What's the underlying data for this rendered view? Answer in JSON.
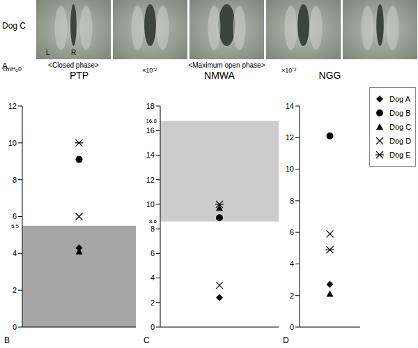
{
  "panel_a": {
    "panel": "A",
    "subject": "Dog C",
    "left": "L",
    "right": "R",
    "phases": [
      "<Closed phase>",
      "<Maximum open phase>"
    ]
  },
  "chart_data": [
    {
      "type": "scatter",
      "panel": "B",
      "title": "PTP",
      "y_label": "cmH₂0",
      "ylim": [
        0,
        12
      ],
      "yticks": [
        0,
        2,
        4,
        6,
        8,
        10,
        12
      ],
      "band": {
        "from": 0,
        "to": 5.5,
        "color": "#a6a6a6"
      },
      "series": [
        {
          "name": "Dog A",
          "marker": "diamond",
          "color": "#000000",
          "values": [
            4.3
          ]
        },
        {
          "name": "Dog B",
          "marker": "circle",
          "color": "#000000",
          "values": [
            9.1
          ]
        },
        {
          "name": "Dog C",
          "marker": "triangle",
          "color": "#000000",
          "values": [
            4.1
          ]
        },
        {
          "name": "Dog D",
          "marker": "x",
          "color": "#000000",
          "values": [
            6.0
          ]
        },
        {
          "name": "Dog E",
          "marker": "asterisk",
          "color": "#000000",
          "values": [
            10.0
          ]
        }
      ]
    },
    {
      "type": "scatter",
      "panel": "C",
      "title": "NMWA",
      "y_label": "×10⁻²",
      "ylim": [
        0,
        18
      ],
      "yticks": [
        0,
        2,
        4,
        6,
        8,
        10,
        12,
        14,
        16,
        18
      ],
      "band": {
        "from": 8.6,
        "to": 16.8,
        "color": "#cccccc"
      },
      "series": [
        {
          "name": "Dog A",
          "marker": "diamond",
          "color": "#000000",
          "values": [
            2.4
          ]
        },
        {
          "name": "Dog B",
          "marker": "circle",
          "color": "#000000",
          "values": [
            8.9
          ]
        },
        {
          "name": "Dog C",
          "marker": "triangle",
          "color": "#000000",
          "values": [
            9.7
          ]
        },
        {
          "name": "Dog D",
          "marker": "x",
          "color": "#000000",
          "values": [
            3.4
          ]
        },
        {
          "name": "Dog E",
          "marker": "asterisk",
          "color": "#000000",
          "values": [
            10.0
          ]
        }
      ]
    },
    {
      "type": "scatter",
      "panel": "D",
      "title": "NGG",
      "y_label": "×10⁻²",
      "ylim": [
        0,
        14
      ],
      "yticks": [
        0,
        2,
        4,
        6,
        8,
        10,
        12,
        14
      ],
      "legend": "right",
      "series": [
        {
          "name": "Dog A",
          "marker": "diamond",
          "color": "#000000",
          "values": [
            2.7
          ]
        },
        {
          "name": "Dog B",
          "marker": "circle",
          "color": "#000000",
          "values": [
            12.1
          ]
        },
        {
          "name": "Dog C",
          "marker": "triangle",
          "color": "#000000",
          "values": [
            2.1
          ]
        },
        {
          "name": "Dog D",
          "marker": "x",
          "color": "#000000",
          "values": [
            5.9
          ]
        },
        {
          "name": "Dog E",
          "marker": "asterisk",
          "color": "#000000",
          "values": [
            4.9
          ]
        }
      ]
    }
  ]
}
